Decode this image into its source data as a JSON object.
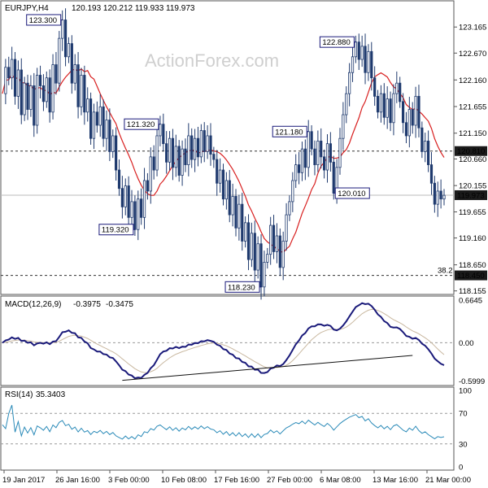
{
  "header": {
    "symbol": "EURJPY,H4",
    "ohlc": "120.193 120.212 119.933 119.973"
  },
  "watermark": "ActionForex.com",
  "colors": {
    "candle": "#1f3a6e",
    "sma": "#d81f1f",
    "macd": "#1a1a7a",
    "signal": "#c9b8a0",
    "rsi": "#2a8ab8",
    "box_fill": "#ffffff",
    "box_border": "#1a1a7a",
    "price_box": "#1a1a1a"
  },
  "x_axis": {
    "labels": [
      "19 Jan 2017",
      "26 Jan 16:00",
      "3 Feb 00:00",
      "10 Feb 08:00",
      "17 Feb 16:00",
      "27 Feb 00:00",
      "6 Mar 08:00",
      "13 Mar 16:00",
      "21 Mar 00:00"
    ]
  },
  "chart_data": [
    {
      "type": "candlestick",
      "title": "EURJPY,H4",
      "x_ticks": [
        "19 Jan 2017",
        "26 Jan 16:00",
        "3 Feb 00:00",
        "10 Feb 08:00",
        "17 Feb 16:00",
        "27 Feb 00:00",
        "6 Mar 08:00",
        "13 Mar 16:00",
        "21 Mar 00:00"
      ],
      "ylim": [
        118.15,
        123.4
      ],
      "y_ticks": [
        "123.165",
        "122.670",
        "122.160",
        "121.655",
        "121.150",
        "120.660",
        "120.155",
        "119.655",
        "119.160",
        "118.650",
        "118.155"
      ],
      "price_points": [
        121.9,
        122.4,
        122.2,
        122.55,
        121.85,
        122.35,
        121.5,
        122.1,
        121.6,
        122.05,
        121.3,
        122.25,
        122.05,
        121.75,
        122.2,
        121.55,
        122.45,
        122.1,
        122.95,
        123.3,
        122.6,
        122.85,
        122.1,
        122.45,
        121.65,
        122.25,
        121.55,
        121.8,
        121.05,
        121.55,
        121.3,
        121.65,
        121.05,
        121.4,
        120.8,
        121.1,
        120.45,
        120.1,
        119.75,
        120.15,
        119.55,
        119.85,
        119.32,
        119.9,
        119.55,
        120.25,
        120.05,
        120.7,
        120.45,
        121.1,
        121.32,
        120.95,
        120.6,
        121.05,
        120.5,
        120.9,
        120.35,
        120.85,
        120.55,
        121.1,
        120.65,
        121.05,
        120.7,
        121.2,
        120.8,
        121.1,
        120.75,
        120.65,
        120.2,
        120.45,
        119.9,
        120.25,
        119.6,
        119.95,
        119.35,
        119.8,
        119.1,
        119.45,
        118.75,
        119.25,
        118.55,
        119.05,
        118.23,
        118.7,
        118.85,
        119.4,
        118.9,
        119.2,
        118.6,
        119.1,
        119.6,
        119.85,
        120.25,
        120.55,
        120.4,
        120.85,
        120.5,
        121.18,
        120.85,
        120.55,
        121.0,
        120.7,
        120.45,
        120.95,
        120.6,
        120.01,
        120.5,
        121.05,
        121.5,
        121.9,
        122.3,
        122.6,
        122.88,
        122.55,
        122.8,
        122.3,
        122.7,
        122.2,
        121.85,
        121.55,
        121.9,
        121.45,
        121.8,
        121.35,
        121.9,
        122.1,
        121.75,
        121.35,
        121.1,
        121.6,
        121.3,
        121.85,
        121.25,
        120.8,
        121.0,
        120.55,
        120.2,
        119.8,
        120.05,
        119.9,
        119.97
      ],
      "indicators": {
        "sma_label": "SMA",
        "macd": {
          "label": "MACD(12,26,9)",
          "main": "-0.3975",
          "signal": "-0.3475",
          "ylim": [
            -0.62,
            0.68
          ],
          "y_ticks": [
            "0.6645",
            "0.00",
            "-0.5999"
          ]
        },
        "rsi": {
          "label": "RSI(14)",
          "value": "35.3403",
          "ylim": [
            0,
            100
          ],
          "y_ticks": [
            "100",
            "70",
            "30",
            "0"
          ]
        }
      },
      "horizontal_levels": [
        {
          "value": 120.81,
          "label": "120.810",
          "style": "dashed"
        },
        {
          "value": 119.973,
          "label": "119.973",
          "style": "solid-light"
        },
        {
          "value": 118.45,
          "label": "118.450",
          "style": "dashed",
          "note": "38.2"
        }
      ],
      "annotations": [
        {
          "label": "123.300",
          "index": 19,
          "value": 123.3,
          "pos": "left"
        },
        {
          "label": "121.320",
          "index": 50,
          "value": 121.32,
          "pos": "left"
        },
        {
          "label": "119.320",
          "index": 42,
          "value": 119.32,
          "pos": "left"
        },
        {
          "label": "118.230",
          "index": 82,
          "value": 118.23,
          "pos": "left"
        },
        {
          "label": "121.180",
          "index": 97,
          "value": 121.18,
          "pos": "left"
        },
        {
          "label": "120.010",
          "index": 105,
          "value": 120.01,
          "pos": "right"
        },
        {
          "label": "122.880",
          "index": 112,
          "value": 122.88,
          "pos": "left"
        }
      ]
    }
  ]
}
